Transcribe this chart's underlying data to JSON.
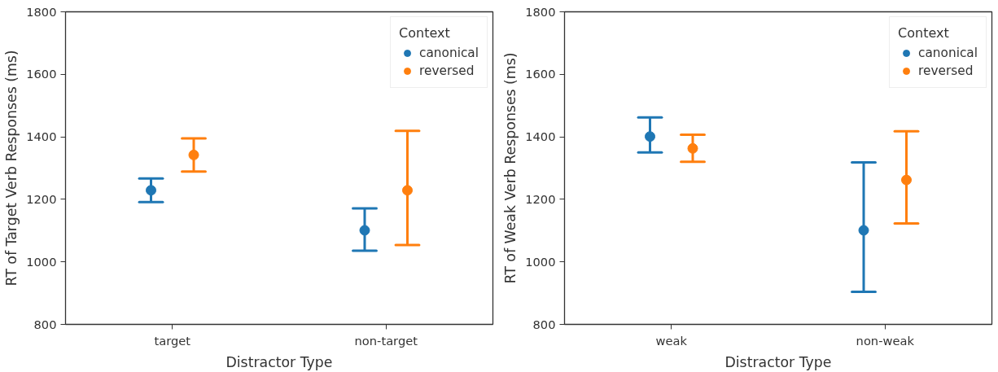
{
  "chart_data": [
    {
      "type": "scatter",
      "xlabel": "Distractor Type",
      "ylabel": "RT of Target Verb Responses (ms)",
      "categories": [
        "target",
        "non-target"
      ],
      "legend_title": "Context",
      "legend": "top right",
      "grid": false,
      "marker": "circle",
      "ylim": [
        800,
        1800
      ],
      "yticks": [
        800,
        1000,
        1200,
        1400,
        1600,
        1800
      ],
      "series": [
        {
          "name": "canonical",
          "color": "#1f77b4",
          "values": [
            1229,
            1101
          ],
          "errors": [
            [
              1191,
              1267
            ],
            [
              1036,
              1171
            ]
          ]
        },
        {
          "name": "reversed",
          "color": "#ff7f0e",
          "values": [
            1342,
            1229
          ],
          "errors": [
            [
              1289,
              1395
            ],
            [
              1054,
              1419
            ]
          ]
        }
      ]
    },
    {
      "type": "scatter",
      "xlabel": "Distractor Type",
      "ylabel": "RT of Weak Verb Responses (ms)",
      "categories": [
        "weak",
        "non-weak"
      ],
      "legend_title": "Context",
      "legend": "top right",
      "grid": false,
      "marker": "circle",
      "ylim": [
        800,
        1800
      ],
      "yticks": [
        800,
        1000,
        1200,
        1400,
        1600,
        1800
      ],
      "series": [
        {
          "name": "canonical",
          "color": "#1f77b4",
          "values": [
            1401,
            1101
          ],
          "errors": [
            [
              1350,
              1462
            ],
            [
              904,
              1318
            ]
          ]
        },
        {
          "name": "reversed",
          "color": "#ff7f0e",
          "values": [
            1363,
            1262
          ],
          "errors": [
            [
              1320,
              1407
            ],
            [
              1123,
              1418
            ]
          ]
        }
      ]
    }
  ]
}
